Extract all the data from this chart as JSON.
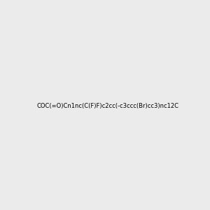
{
  "smiles": "COC(=O)Cn1nc(C(F)F)c2cc(-c3ccc(Br)cc3)nc12C",
  "img_size": [
    300,
    300
  ],
  "background_color": "#ebebeb",
  "title": "",
  "atom_colors": {
    "N": [
      0,
      0,
      1
    ],
    "O": [
      1,
      0,
      0
    ],
    "F": [
      1,
      0,
      1
    ],
    "Br": [
      0.8,
      0.4,
      0
    ]
  }
}
